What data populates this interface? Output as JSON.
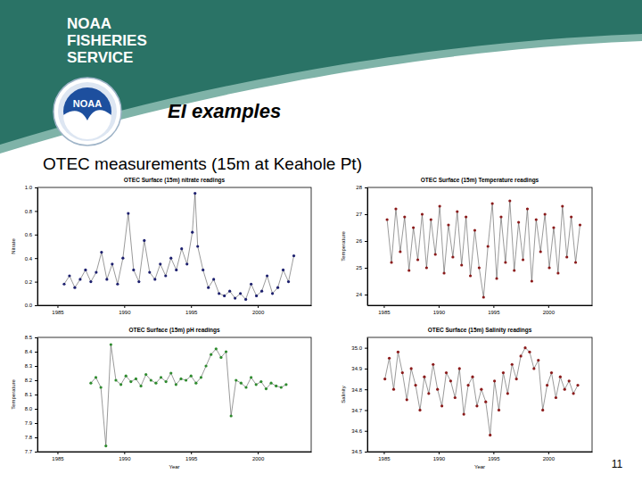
{
  "slide": {
    "header": [
      "NOAA",
      "FISHERIES",
      "SERVICE"
    ],
    "logo_text": "NOAA",
    "title": "EI examples",
    "subtitle": "OTEC measurements (15m at Keahole Pt)",
    "page_number": 11
  },
  "chart_data": [
    {
      "type": "line",
      "title": "OTEC Surface (15m) nitrate readings",
      "y_label": "Nitrate",
      "x": [
        1985.5,
        1985.9,
        1986.3,
        1986.7,
        1987.1,
        1987.5,
        1987.9,
        1988.3,
        1988.7,
        1989.1,
        1989.5,
        1989.9,
        1990.3,
        1990.7,
        1991.1,
        1991.5,
        1991.9,
        1992.3,
        1992.7,
        1993.1,
        1993.5,
        1993.9,
        1994.3,
        1994.7,
        1995.1,
        1995.3,
        1995.5,
        1995.9,
        1996.3,
        1996.7,
        1997.1,
        1997.5,
        1997.9,
        1998.3,
        1998.7,
        1999.1,
        1999.5,
        1999.9,
        2000.3,
        2000.7,
        2001.1,
        2001.5,
        2001.9,
        2002.3,
        2002.7
      ],
      "series": [
        {
          "color": "#1c1f6e",
          "marker": "circle",
          "line_style": "solid",
          "values": [
            0.18,
            0.25,
            0.15,
            0.22,
            0.3,
            0.2,
            0.28,
            0.45,
            0.22,
            0.35,
            0.18,
            0.4,
            0.78,
            0.3,
            0.2,
            0.55,
            0.28,
            0.22,
            0.35,
            0.25,
            0.4,
            0.3,
            0.48,
            0.35,
            0.62,
            0.95,
            0.5,
            0.3,
            0.15,
            0.22,
            0.1,
            0.08,
            0.12,
            0.06,
            0.1,
            0.05,
            0.18,
            0.08,
            0.12,
            0.25,
            0.1,
            0.15,
            0.3,
            0.2,
            0.42
          ]
        }
      ],
      "xlim": [
        1983.5,
        2004
      ],
      "xticks": [
        1985,
        1990,
        1995,
        2000
      ],
      "ylim": [
        0,
        1.0
      ],
      "yticks": [
        {
          "value": 0,
          "label": "0.0"
        },
        0.2,
        0.4,
        0.6,
        0.8,
        {
          "value": 1.0,
          "label": "1.0"
        }
      ]
    },
    {
      "type": "line",
      "title": "OTEC Surface (15m) Temperature readings",
      "y_label": "Temperature",
      "x": [
        1985.3,
        1985.7,
        1986.1,
        1986.5,
        1986.9,
        1987.3,
        1987.7,
        1988.1,
        1988.5,
        1988.9,
        1989.3,
        1989.7,
        1990.1,
        1990.5,
        1990.9,
        1991.3,
        1991.7,
        1992.1,
        1992.5,
        1992.9,
        1993.3,
        1993.7,
        1994.1,
        1994.5,
        1994.9,
        1995.3,
        1995.7,
        1996.1,
        1996.5,
        1996.9,
        1997.3,
        1997.7,
        1998.1,
        1998.5,
        1998.9,
        1999.3,
        1999.7,
        2000.1,
        2000.5,
        2000.9,
        2001.3,
        2001.7,
        2002.1,
        2002.5,
        2002.9
      ],
      "series": [
        {
          "color": "#8b1a1a",
          "marker": "circle",
          "line_style": "solid",
          "values": [
            26.8,
            25.2,
            27.2,
            25.6,
            26.9,
            24.9,
            26.5,
            25.3,
            27.0,
            25.0,
            26.8,
            25.5,
            27.3,
            24.8,
            26.6,
            25.4,
            27.1,
            25.1,
            26.9,
            24.7,
            26.4,
            25.0,
            23.9,
            25.8,
            27.4,
            24.6,
            26.9,
            25.2,
            27.5,
            24.9,
            26.7,
            25.3,
            27.2,
            24.5,
            26.8,
            25.6,
            27.0,
            25.0,
            26.5,
            24.8,
            27.3,
            25.4,
            26.9,
            25.2,
            26.6
          ]
        }
      ],
      "xlim": [
        1983.5,
        2004
      ],
      "xticks": [
        1985,
        1990,
        1995,
        2000
      ],
      "ylim": [
        23.6,
        28.0
      ],
      "yticks": [
        24,
        25,
        26,
        27,
        28
      ]
    },
    {
      "type": "line",
      "title": "OTEC Surface (15m) pH readings",
      "y_label": "Temperature",
      "x_label": "Year",
      "x": [
        1987.5,
        1987.875,
        1988.25,
        1988.625,
        1989.0,
        1989.375,
        1989.75,
        1990.125,
        1990.5,
        1990.875,
        1991.25,
        1991.625,
        1992.0,
        1992.375,
        1992.75,
        1993.125,
        1993.5,
        1993.875,
        1994.25,
        1994.625,
        1995.0,
        1995.375,
        1995.75,
        1996.125,
        1996.5,
        1996.875,
        1997.25,
        1997.625,
        1998.0,
        1998.375,
        1998.75,
        1999.125,
        1999.5,
        1999.875,
        2000.25,
        2000.625,
        2001.0,
        2001.375,
        2001.75,
        2002.125
      ],
      "series": [
        {
          "color": "#2e8b2e",
          "marker": "circle",
          "line_style": "solid",
          "values": [
            8.18,
            8.22,
            8.15,
            7.74,
            8.45,
            8.2,
            8.17,
            8.23,
            8.19,
            8.21,
            8.16,
            8.24,
            8.2,
            8.18,
            8.22,
            8.19,
            8.25,
            8.17,
            8.21,
            8.2,
            8.23,
            8.18,
            8.22,
            8.3,
            8.38,
            8.42,
            8.36,
            8.4,
            7.95,
            8.2,
            8.18,
            8.15,
            8.22,
            8.17,
            8.19,
            8.14,
            8.18,
            8.16,
            8.15,
            8.17
          ]
        }
      ],
      "xlim": [
        1983.5,
        2004
      ],
      "xticks": [
        1985,
        1990,
        1995,
        2000
      ],
      "ylim": [
        7.7,
        8.5
      ],
      "yticks": [
        7.7,
        7.8,
        7.9,
        {
          "value": 8.0,
          "label": "8.0"
        },
        8.1,
        8.2,
        8.3,
        8.4,
        8.5
      ]
    },
    {
      "type": "line",
      "title": "OTEC Surface (15m) Salinity readings",
      "y_label": "Salinity",
      "x_label": "Year",
      "x": [
        1985.1,
        1985.5,
        1985.9,
        1986.3,
        1986.7,
        1987.1,
        1987.5,
        1987.9,
        1988.3,
        1988.7,
        1989.1,
        1989.5,
        1989.9,
        1990.3,
        1990.7,
        1991.1,
        1991.5,
        1991.9,
        1992.3,
        1992.7,
        1993.1,
        1993.5,
        1993.9,
        1994.3,
        1994.7,
        1995.1,
        1995.5,
        1995.9,
        1996.3,
        1996.7,
        1997.1,
        1997.5,
        1997.9,
        1998.3,
        1998.7,
        1999.1,
        1999.5,
        1999.9,
        2000.3,
        2000.7,
        2001.1,
        2001.5,
        2001.9,
        2002.3,
        2002.7
      ],
      "series": [
        {
          "color": "#8b1a1a",
          "marker": "circle",
          "line_style": "solid",
          "values": [
            34.85,
            34.95,
            34.8,
            34.98,
            34.88,
            34.75,
            34.9,
            34.82,
            34.7,
            34.86,
            34.78,
            34.92,
            34.8,
            34.72,
            34.88,
            34.84,
            34.76,
            34.9,
            34.68,
            34.82,
            34.86,
            34.72,
            34.8,
            34.74,
            34.58,
            34.84,
            34.7,
            34.88,
            34.78,
            34.92,
            34.85,
            34.96,
            35.0,
            34.98,
            34.9,
            34.94,
            34.7,
            34.82,
            34.88,
            34.76,
            34.86,
            34.8,
            34.84,
            34.78,
            34.82
          ]
        }
      ],
      "xlim": [
        1983.5,
        2004
      ],
      "xticks": [
        1985,
        1990,
        1995,
        2000
      ],
      "ylim": [
        34.5,
        35.05
      ],
      "yticks": [
        34.5,
        34.6,
        34.7,
        34.8,
        34.9,
        {
          "value": 35.0,
          "label": "35.0"
        }
      ]
    }
  ]
}
